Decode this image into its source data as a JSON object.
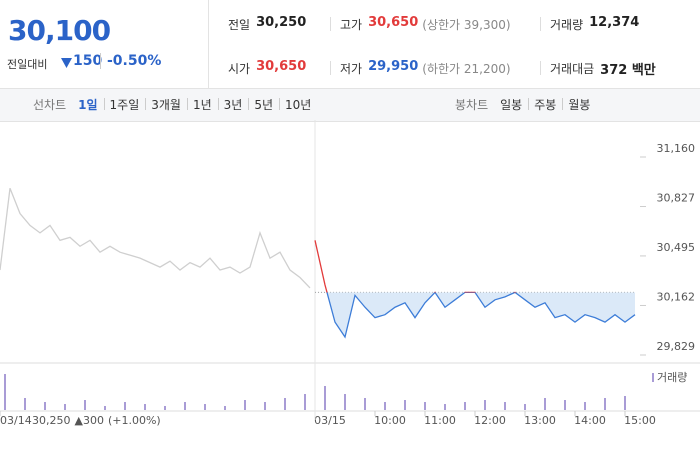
{
  "header": {
    "price": "30,100",
    "change_label": "전일대비",
    "change": "150",
    "change_pct": "-0.50%"
  },
  "stats": [
    {
      "label": "전일",
      "value": "30,250"
    },
    {
      "label": "고가",
      "value": "30,650",
      "note": "(상한가 39,300)"
    },
    {
      "label": "거래량",
      "value": "12,374"
    },
    {
      "label": "시가",
      "value": "30,650"
    },
    {
      "label": "저가",
      "value": "29,950",
      "note": "(하한가 21,200)"
    },
    {
      "label": "거래대금",
      "value": "372 백만"
    }
  ],
  "tabs": {
    "line_label": "선차트",
    "line_tabs": [
      "1일",
      "1주일",
      "3개월",
      "1년",
      "3년",
      "5년",
      "10년"
    ],
    "candle_label": "봉차트",
    "candle_tabs": [
      "일봉",
      "주봉",
      "월봉"
    ]
  },
  "chart_data": {
    "type": "line",
    "series": [
      {
        "color": "#cfcfcf",
        "x": [
          0,
          2,
          4,
          6,
          8,
          10,
          12,
          14,
          16,
          18,
          20,
          22,
          24,
          26,
          28,
          30,
          32,
          34,
          36,
          38,
          40,
          42,
          44,
          46,
          48,
          50,
          52,
          54,
          56,
          58,
          60,
          62
        ],
        "values": [
          30400,
          30950,
          30780,
          30700,
          30650,
          30700,
          30600,
          30620,
          30560,
          30600,
          30520,
          30560,
          30520,
          30500,
          30480,
          30450,
          30420,
          30460,
          30400,
          30450,
          30420,
          30480,
          30400,
          30420,
          30380,
          30420,
          30650,
          30480,
          30520,
          30400,
          30350,
          30280
        ]
      },
      {
        "color": "#3d7dd8",
        "up_color": "#e23b3b",
        "x": [
          63,
          65,
          67,
          69,
          71,
          73,
          75,
          77,
          79,
          81,
          83,
          85,
          87,
          89,
          91,
          93,
          95,
          97,
          99,
          101,
          103,
          105,
          107,
          109,
          111,
          113,
          115,
          117,
          119,
          121,
          123,
          125,
          127
        ],
        "values": [
          30600,
          30300,
          30050,
          29950,
          30230,
          30150,
          30080,
          30100,
          30150,
          30180,
          30080,
          30180,
          30250,
          30150,
          30200,
          30250,
          30250,
          30150,
          30200,
          30220,
          30250,
          30200,
          30150,
          30180,
          30080,
          30100,
          30050,
          30100,
          30080,
          30050,
          30100,
          30050,
          30100
        ]
      }
    ],
    "reference": 30250,
    "xlim": [
      0,
      128
    ],
    "xticks": [
      {
        "value": 0,
        "label": "03/14"
      },
      {
        "value": 63,
        "label": "03/15"
      },
      {
        "value": 75,
        "label": "10:00"
      },
      {
        "value": 85,
        "label": "11:00"
      },
      {
        "value": 95,
        "label": "12:00"
      },
      {
        "value": 105,
        "label": "13:00"
      },
      {
        "value": 115,
        "label": "14:00"
      },
      {
        "value": 125,
        "label": "15:00"
      }
    ],
    "ylim": [
      29829,
      31160
    ],
    "yticks": [
      {
        "value": 29829,
        "label": "29,829"
      },
      {
        "value": 30162,
        "label": "30,162"
      },
      {
        "value": 30495,
        "label": "30,495"
      },
      {
        "value": 30827,
        "label": "30,827"
      },
      {
        "value": 31160,
        "label": "31,160"
      }
    ],
    "volume": {
      "name": "거래량",
      "color": "#a99cd6",
      "ylim": [
        0,
        100
      ],
      "x": [
        1,
        5,
        9,
        13,
        17,
        21,
        25,
        29,
        33,
        37,
        41,
        45,
        49,
        53,
        57,
        61,
        65,
        69,
        73,
        77,
        81,
        85,
        89,
        93,
        97,
        101,
        105,
        109,
        113,
        117,
        121,
        125
      ],
      "values": [
        90,
        30,
        20,
        15,
        25,
        10,
        20,
        15,
        10,
        20,
        15,
        10,
        25,
        20,
        30,
        40,
        60,
        40,
        30,
        20,
        25,
        20,
        15,
        20,
        25,
        20,
        15,
        30,
        25,
        20,
        30,
        35
      ]
    },
    "annotation": {
      "close": "30,250",
      "change": "▲300",
      "pct": "(+1.00%)"
    }
  }
}
